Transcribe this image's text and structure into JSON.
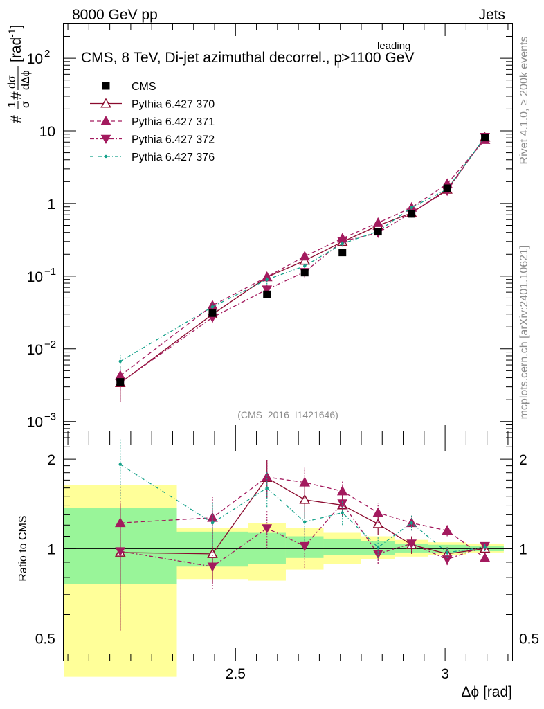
{
  "header": {
    "left": "8000 GeV pp",
    "right": "Jets",
    "side_top": "Rivet 4.1.0, ≥ 200k events",
    "side_bottom": "mcplots.cern.ch [arXiv:2401.10621]",
    "analysis_id": "(CMS_2016_I1421646)"
  },
  "chart_data": {
    "type": "scatter",
    "title_main": "CMS, 8 TeV, Di-jet azimuthal decorrel., p",
    "title_sub": "T",
    "title_sup": "leading",
    "title_tail": ">1100 GeV",
    "xlabel": "Δϕ [rad]",
    "ylabel": "#frac{1}{σ}#frac{dσ}{dΔϕ} [rad⁻¹]",
    "ylabel_parts": {
      "lead": "#",
      "n1": "1",
      "d1": "σ",
      "mid": "#",
      "n2": "dσ",
      "d2": "dΔϕ",
      "unit": "[rad",
      "unit_sup": "-1",
      "unit_end": "]"
    },
    "ratio_ylabel": "Ratio to CMS",
    "xlim": [
      2.09,
      3.16
    ],
    "ylim": [
      0.0006,
      300
    ],
    "ratio_ylim": [
      0.42,
      2.35
    ],
    "x_ticks": [
      {
        "v": 2.5,
        "label": "2.5"
      },
      {
        "v": 3,
        "label": "3"
      }
    ],
    "y_ticks": [
      {
        "exp": 2,
        "label": "10",
        "sup": "2"
      },
      {
        "exp": 1,
        "label": "10",
        "sup": ""
      },
      {
        "exp": 0,
        "label": "1",
        "sup": ""
      },
      {
        "exp": -1,
        "label": "10",
        "sup": "−1"
      },
      {
        "exp": -2,
        "label": "10",
        "sup": "−2"
      },
      {
        "exp": -3,
        "label": "10",
        "sup": "−3"
      }
    ],
    "ratio_ticks": [
      {
        "v": 2,
        "label": "2"
      },
      {
        "v": 1,
        "label": "1"
      },
      {
        "v": 0.5,
        "label": "0.5"
      }
    ],
    "bins": [
      {
        "lo": 2.09,
        "hi": 2.36,
        "x": 2.225
      },
      {
        "lo": 2.36,
        "hi": 2.53,
        "x": 2.445
      },
      {
        "lo": 2.53,
        "hi": 2.62,
        "x": 2.575
      },
      {
        "lo": 2.62,
        "hi": 2.71,
        "x": 2.665
      },
      {
        "lo": 2.71,
        "hi": 2.8,
        "x": 2.755
      },
      {
        "lo": 2.8,
        "hi": 2.88,
        "x": 2.84
      },
      {
        "lo": 2.88,
        "hi": 2.96,
        "x": 2.92
      },
      {
        "lo": 2.96,
        "hi": 3.05,
        "x": 3.005
      },
      {
        "lo": 3.05,
        "hi": 3.14,
        "x": 3.095
      }
    ],
    "cms": {
      "name": "CMS",
      "values": [
        0.0035,
        0.031,
        0.056,
        0.112,
        0.212,
        0.41,
        0.72,
        1.62,
        8.1
      ],
      "band_stat": [
        [
          0.76,
          1.37
        ],
        [
          0.87,
          1.14
        ],
        [
          0.89,
          1.13
        ],
        [
          0.93,
          1.1
        ],
        [
          0.95,
          1.08
        ],
        [
          0.95,
          1.06
        ],
        [
          0.97,
          1.04
        ],
        [
          0.97,
          1.03
        ],
        [
          0.98,
          1.02
        ]
      ],
      "band_tot": [
        [
          0.37,
          1.64
        ],
        [
          0.79,
          1.17
        ],
        [
          0.78,
          1.22
        ],
        [
          0.85,
          1.17
        ],
        [
          0.89,
          1.13
        ],
        [
          0.92,
          1.1
        ],
        [
          0.94,
          1.07
        ],
        [
          0.95,
          1.05
        ],
        [
          0.97,
          1.04
        ]
      ]
    },
    "series": [
      {
        "name": "Pythia 6.427 370",
        "color": "#8b0a2e",
        "dash": "",
        "marker": "triangle-open",
        "ratio": [
          0.97,
          0.96,
          1.73,
          1.46,
          1.4,
          1.21,
          1.03,
          0.96,
          1.0
        ],
        "ratio_err": [
          0.44,
          0.2,
          0.25,
          0.2,
          0.12,
          0.1,
          0.07,
          0.05,
          0.03
        ]
      },
      {
        "name": "Pythia 6.427 371",
        "color": "#a31a5e",
        "dash": "6,4",
        "marker": "triangle-up",
        "ratio": [
          1.22,
          1.27,
          1.74,
          1.67,
          1.56,
          1.32,
          1.22,
          1.15,
          0.93
        ],
        "ratio_err": [
          0.45,
          0.22,
          0.25,
          0.2,
          0.13,
          0.1,
          0.07,
          0.05,
          0.03
        ]
      },
      {
        "name": "Pythia 6.427 372",
        "color": "#a31a5e",
        "dash": "6,3,2,3",
        "marker": "triangle-down",
        "ratio": [
          0.98,
          0.87,
          1.17,
          1.02,
          1.42,
          0.96,
          1.04,
          0.92,
          1.02
        ],
        "ratio_err": [
          0.45,
          0.14,
          0.17,
          0.16,
          0.12,
          0.07,
          0.06,
          0.04,
          0.03
        ]
      },
      {
        "name": "Pythia 6.427 376",
        "color": "#15a18a",
        "dash": "5,3,1,3",
        "marker": "dot",
        "ratio": [
          1.92,
          1.22,
          1.6,
          1.23,
          1.32,
          1.01,
          1.22,
          0.97,
          1.01
        ],
        "ratio_err": [
          0.45,
          0.2,
          0.22,
          0.17,
          0.12,
          0.08,
          0.07,
          0.04,
          0.03
        ]
      }
    ]
  }
}
